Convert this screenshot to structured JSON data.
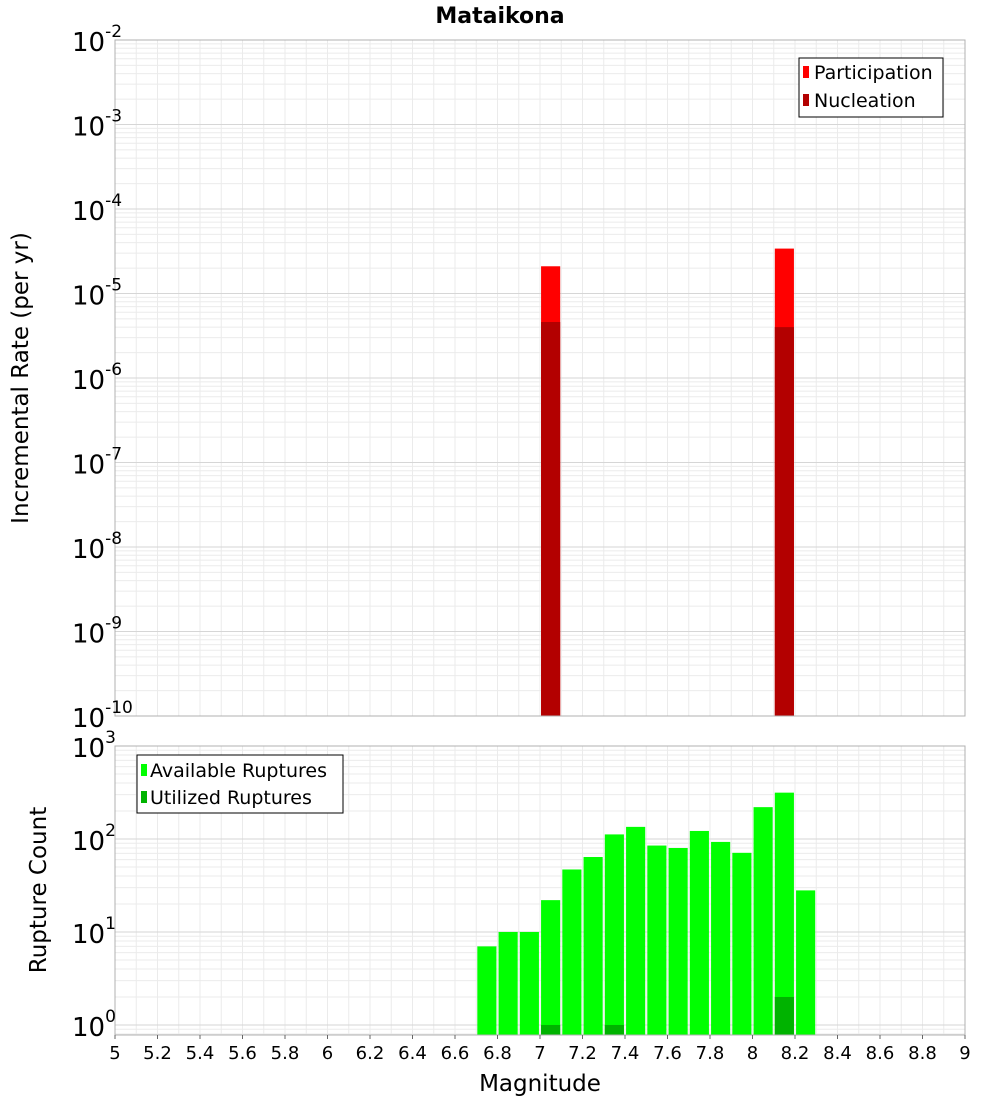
{
  "chart_data": [
    {
      "type": "bar",
      "title": "Mataikona",
      "xlabel": "",
      "ylabel": "Incremental Rate (per yr)",
      "xlim": [
        5,
        9
      ],
      "ylim": [
        1e-10,
        0.01
      ],
      "yscale": "log",
      "yticks": [
        {
          "base": "10",
          "exp": "-10"
        },
        {
          "base": "10",
          "exp": "-9"
        },
        {
          "base": "10",
          "exp": "-8"
        },
        {
          "base": "10",
          "exp": "-7"
        },
        {
          "base": "10",
          "exp": "-6"
        },
        {
          "base": "10",
          "exp": "-5"
        },
        {
          "base": "10",
          "exp": "-4"
        },
        {
          "base": "10",
          "exp": "-3"
        },
        {
          "base": "10",
          "exp": "-2"
        }
      ],
      "grid": true,
      "legend_position": "top-right",
      "series": [
        {
          "name": "Participation",
          "color": "#ff0000",
          "points": [
            {
              "x": 7.05,
              "y": 2.1e-05
            },
            {
              "x": 8.15,
              "y": 3.4e-05
            }
          ]
        },
        {
          "name": "Nucleation",
          "color": "#b30000",
          "points": [
            {
              "x": 7.05,
              "y": 4.6e-06
            },
            {
              "x": 8.15,
              "y": 4e-06
            }
          ]
        }
      ]
    },
    {
      "type": "bar",
      "title": "",
      "xlabel": "Magnitude",
      "ylabel": "Rupture Count",
      "xlim": [
        5,
        9
      ],
      "ylim": [
        0.78,
        1000
      ],
      "yscale": "log",
      "yticks": [
        {
          "base": "10",
          "exp": "0"
        },
        {
          "base": "10",
          "exp": "1"
        },
        {
          "base": "10",
          "exp": "2"
        },
        {
          "base": "10",
          "exp": "3"
        }
      ],
      "xticks": [
        "5",
        "5.2",
        "5.4",
        "5.6",
        "5.8",
        "6",
        "6.2",
        "6.4",
        "6.6",
        "6.8",
        "7",
        "7.2",
        "7.4",
        "7.6",
        "7.8",
        "8",
        "8.2",
        "8.4",
        "8.6",
        "8.8",
        "9"
      ],
      "grid": true,
      "legend_position": "top-left",
      "series": [
        {
          "name": "Available Ruptures",
          "color": "#00ff00",
          "points": [
            {
              "x": 6.75,
              "y": 7
            },
            {
              "x": 6.85,
              "y": 10
            },
            {
              "x": 6.95,
              "y": 10
            },
            {
              "x": 7.05,
              "y": 22
            },
            {
              "x": 7.15,
              "y": 47
            },
            {
              "x": 7.25,
              "y": 64
            },
            {
              "x": 7.35,
              "y": 112
            },
            {
              "x": 7.45,
              "y": 135
            },
            {
              "x": 7.55,
              "y": 85
            },
            {
              "x": 7.65,
              "y": 80
            },
            {
              "x": 7.75,
              "y": 122
            },
            {
              "x": 7.85,
              "y": 93
            },
            {
              "x": 7.95,
              "y": 71
            },
            {
              "x": 8.05,
              "y": 220
            },
            {
              "x": 8.15,
              "y": 315
            },
            {
              "x": 8.25,
              "y": 28
            }
          ]
        },
        {
          "name": "Utilized Ruptures",
          "color": "#00b300",
          "points": [
            {
              "x": 7.05,
              "y": 1
            },
            {
              "x": 7.35,
              "y": 1
            },
            {
              "x": 8.15,
              "y": 2
            }
          ]
        }
      ]
    }
  ]
}
